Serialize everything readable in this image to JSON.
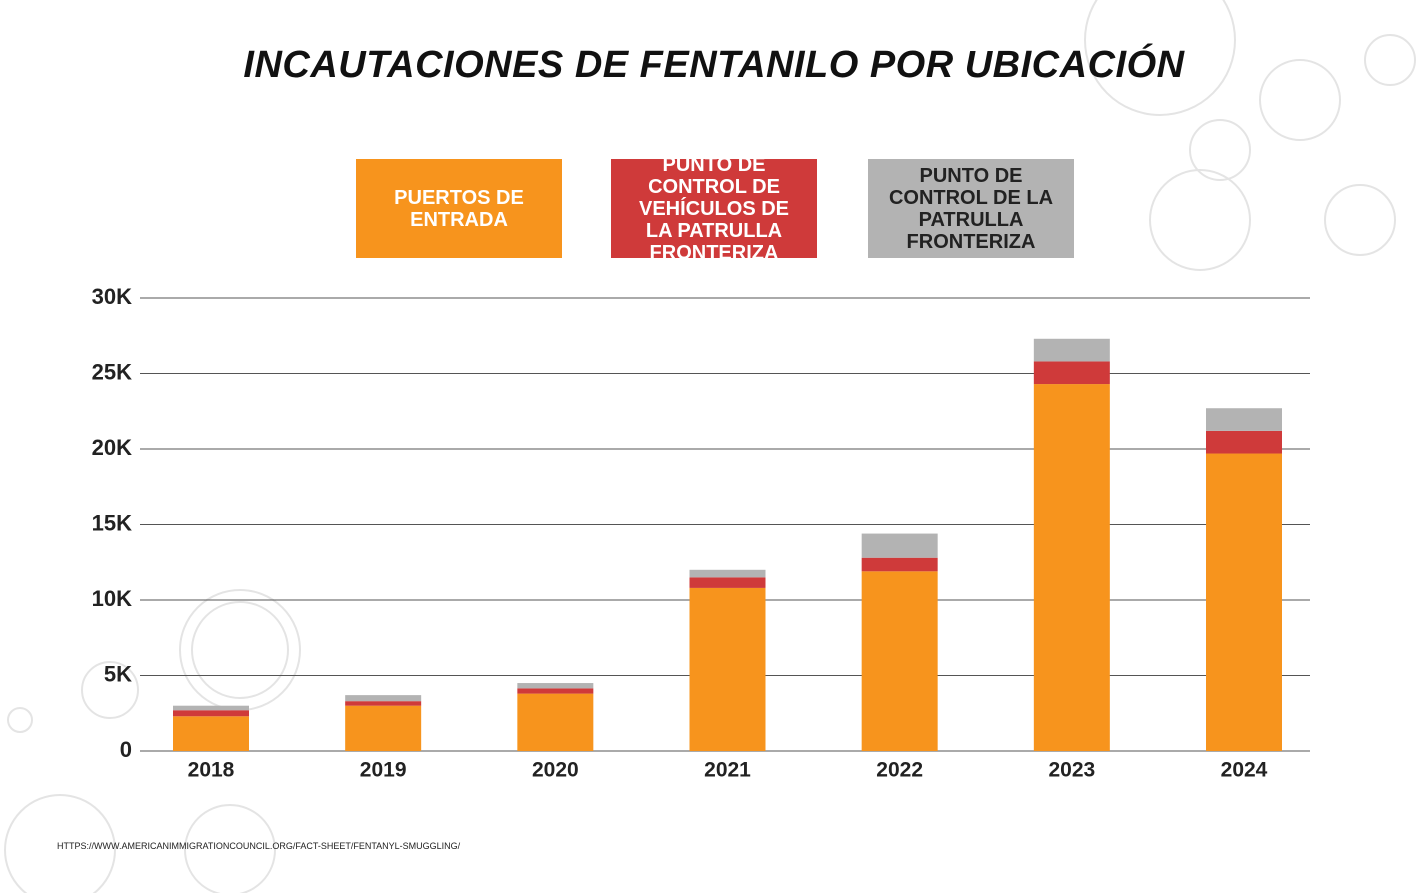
{
  "chart_data": {
    "type": "stacked_bar",
    "title": "INCAUTACIONES DE FENTANILO POR UBICACIÓN",
    "categories": [
      "2018",
      "2019",
      "2020",
      "2021",
      "2022",
      "2023",
      "2024"
    ],
    "series": [
      {
        "name": "PUERTOS DE ENTRADA",
        "color": "#f7941d",
        "values": [
          2300,
          3000,
          3800,
          10800,
          11900,
          24300,
          19700
        ]
      },
      {
        "name": "PUNTO DE CONTROL DE VEHÍCULOS DE LA PATRULLA FRONTERIZA",
        "color": "#cf3a3a",
        "values": [
          400,
          300,
          350,
          700,
          900,
          1500,
          1500
        ]
      },
      {
        "name": "PUNTO DE CONTROL DE LA PATRULLA FRONTERIZA",
        "color": "#b3b3b3",
        "values": [
          300,
          400,
          350,
          500,
          1600,
          1500,
          1500
        ]
      }
    ],
    "ylim": [
      0,
      30000
    ],
    "yticks": [
      0,
      {
        "value": 5000,
        "label": "5K"
      },
      {
        "value": 10000,
        "label": "10K"
      },
      {
        "value": 15000,
        "label": "15K"
      },
      {
        "value": 20000,
        "label": "20K"
      },
      {
        "value": 25000,
        "label": "25K"
      },
      {
        "value": 30000,
        "label": "30K"
      }
    ],
    "grid": true,
    "source": "HTTPS://WWW.AMERICANIMMIGRATIONCOUNCIL.ORG/FACT-SHEET/FENTANYL-SMUGGLING/"
  }
}
